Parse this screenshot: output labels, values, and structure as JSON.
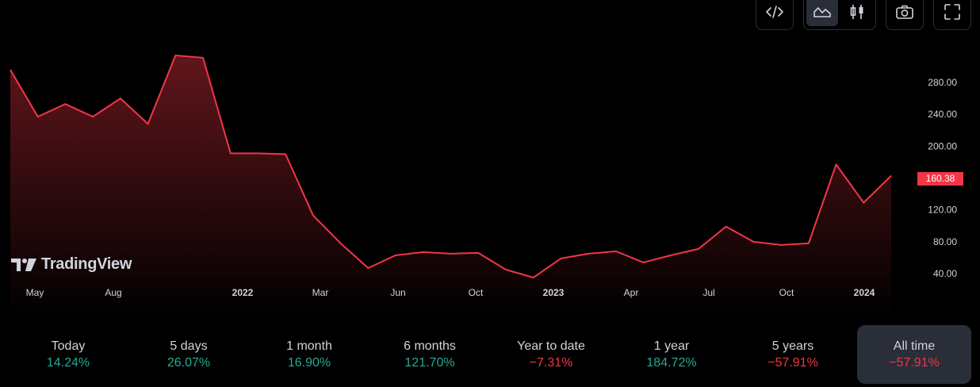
{
  "toolbar": {
    "embed_icon": "code-icon",
    "area_icon": "area-chart-icon",
    "candle_icon": "candlestick-icon",
    "camera_icon": "camera-icon",
    "fullscreen_icon": "fullscreen-icon"
  },
  "logo": {
    "text": "TradingView"
  },
  "current_price": "160.38",
  "colors": {
    "line": "#f23645",
    "up": "#22ab94",
    "down": "#f23645",
    "selected_bg": "#2a2e39"
  },
  "chart_data": {
    "type": "area",
    "y_ticks": [
      "280.00",
      "240.00",
      "200.00",
      "160.00",
      "120.00",
      "80.00",
      "40.00"
    ],
    "x_ticks": [
      {
        "label": "May",
        "bold": false
      },
      {
        "label": "Aug",
        "bold": false
      },
      {
        "label": "2022",
        "bold": true
      },
      {
        "label": "Mar",
        "bold": false
      },
      {
        "label": "Jun",
        "bold": false
      },
      {
        "label": "Oct",
        "bold": false
      },
      {
        "label": "2023",
        "bold": true
      },
      {
        "label": "Apr",
        "bold": false
      },
      {
        "label": "Jul",
        "bold": false
      },
      {
        "label": "Oct",
        "bold": false
      },
      {
        "label": "2024",
        "bold": true
      }
    ],
    "ylim": [
      40,
      280
    ],
    "values": [
      296,
      237,
      253,
      237,
      260,
      228,
      314,
      311,
      191,
      191,
      190,
      113,
      78,
      47,
      63,
      67,
      65,
      66,
      45,
      35,
      59,
      65,
      68,
      54,
      63,
      71,
      99,
      80,
      76,
      78,
      177,
      129,
      163
    ]
  },
  "periods": [
    {
      "label": "Today",
      "value": "14.24%",
      "dir": "up"
    },
    {
      "label": "5 days",
      "value": "26.07%",
      "dir": "up"
    },
    {
      "label": "1 month",
      "value": "16.90%",
      "dir": "up"
    },
    {
      "label": "6 months",
      "value": "121.70%",
      "dir": "up"
    },
    {
      "label": "Year to date",
      "value": "−7.31%",
      "dir": "down"
    },
    {
      "label": "1 year",
      "value": "184.72%",
      "dir": "up"
    },
    {
      "label": "5 years",
      "value": "−57.91%",
      "dir": "down"
    },
    {
      "label": "All time",
      "value": "−57.91%",
      "dir": "down",
      "selected": true
    }
  ]
}
